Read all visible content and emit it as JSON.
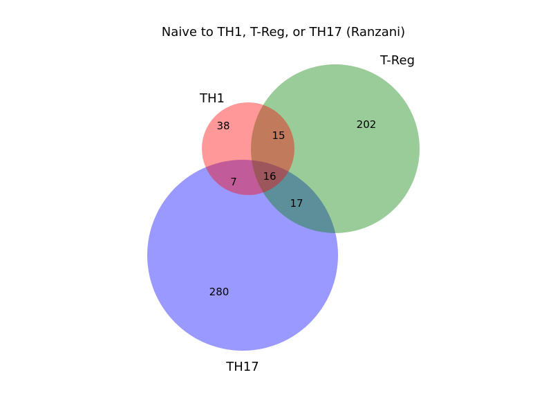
{
  "title": "Naive to TH1, T-Reg, or TH17 (Ranzani)",
  "sets": {
    "th1": {
      "label": "TH1",
      "color": "#ff0000"
    },
    "treg": {
      "label": "T-Reg",
      "color": "#008000"
    },
    "th17": {
      "label": "TH17",
      "color": "#0000ff"
    }
  },
  "fill_opacity": 0.4,
  "regions": {
    "th1_only": "38",
    "treg_only": "202",
    "th17_only": "280",
    "th1_treg": "15",
    "th1_th17": "7",
    "treg_th17": "17",
    "all_three": "16"
  },
  "chart_data": {
    "type": "venn",
    "title": "Naive to TH1, T-Reg, or TH17 (Ranzani)",
    "sets": [
      "TH1",
      "T-Reg",
      "TH17"
    ],
    "regions": [
      {
        "sets": [
          "TH1"
        ],
        "value": 38
      },
      {
        "sets": [
          "T-Reg"
        ],
        "value": 202
      },
      {
        "sets": [
          "TH17"
        ],
        "value": 280
      },
      {
        "sets": [
          "TH1",
          "T-Reg"
        ],
        "value": 15
      },
      {
        "sets": [
          "TH1",
          "TH17"
        ],
        "value": 7
      },
      {
        "sets": [
          "T-Reg",
          "TH17"
        ],
        "value": 17
      },
      {
        "sets": [
          "TH1",
          "T-Reg",
          "TH17"
        ],
        "value": 16
      }
    ]
  }
}
